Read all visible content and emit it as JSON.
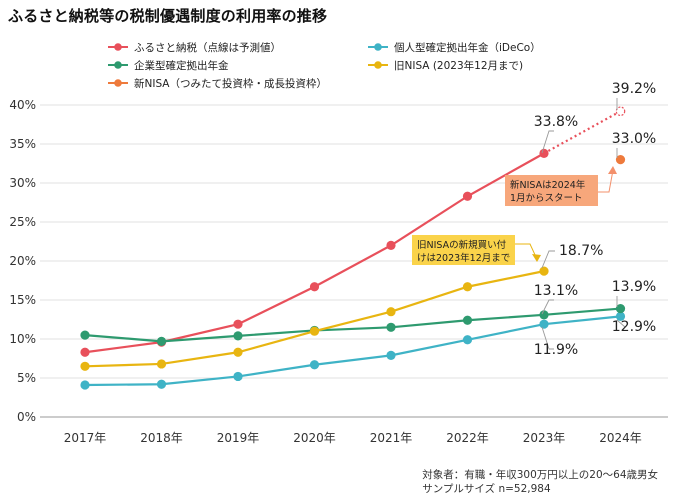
{
  "chart_data": {
    "type": "line",
    "title": "ふるさと納税等の税制優遇制度の利用率の推移",
    "categories": [
      "2017年",
      "2018年",
      "2019年",
      "2020年",
      "2021年",
      "2022年",
      "2023年",
      "2024年"
    ],
    "ylim": [
      0,
      40
    ],
    "yticks": [
      "0%",
      "5%",
      "10%",
      "15%",
      "20%",
      "25%",
      "30%",
      "35%",
      "40%"
    ],
    "grid": true,
    "legend_position": "top-left",
    "series": [
      {
        "name": "ふるさと納税（点線は予測値）",
        "color": "#e8505b",
        "values": [
          8.3,
          9.6,
          11.9,
          16.7,
          22.0,
          28.3,
          33.8,
          null
        ],
        "forecast": {
          "from_index": 6,
          "to_index": 7,
          "value": 39.2
        }
      },
      {
        "name": "個人型確定拠出年金（iDeCo）",
        "color": "#3fb3c6",
        "values": [
          4.1,
          4.2,
          5.2,
          6.7,
          7.9,
          9.9,
          11.9,
          12.9
        ]
      },
      {
        "name": "企業型確定拠出年金",
        "color": "#2e9a6f",
        "values": [
          10.5,
          9.7,
          10.4,
          11.1,
          11.5,
          12.4,
          13.1,
          13.9
        ]
      },
      {
        "name": "旧NISA (2023年12月まで)",
        "color": "#e8b511",
        "values": [
          6.5,
          6.8,
          8.3,
          11.0,
          13.5,
          16.7,
          18.7,
          null
        ]
      },
      {
        "name": "新NISA（つみたて投資枠・成長投資枠）",
        "color": "#ee7a3c",
        "values": [
          null,
          null,
          null,
          null,
          null,
          null,
          null,
          33.0
        ]
      }
    ],
    "data_labels": [
      "39.2%",
      "33.8%",
      "33.0%",
      "18.7%",
      "13.1%",
      "13.9%",
      "12.9%",
      "11.9%"
    ],
    "annotations": [
      {
        "text": [
          "新NISAは2024年",
          "1月からスタート"
        ],
        "color": "#f7a77b"
      },
      {
        "text": [
          "旧NISAの新規買い付",
          "けは2023年12月まで"
        ],
        "color": "#fad34a"
      }
    ]
  },
  "footer": {
    "line1": "対象者：有職・年収300万円以上の20～64歳男女",
    "line2": "サンプルサイズ n=52,984"
  }
}
